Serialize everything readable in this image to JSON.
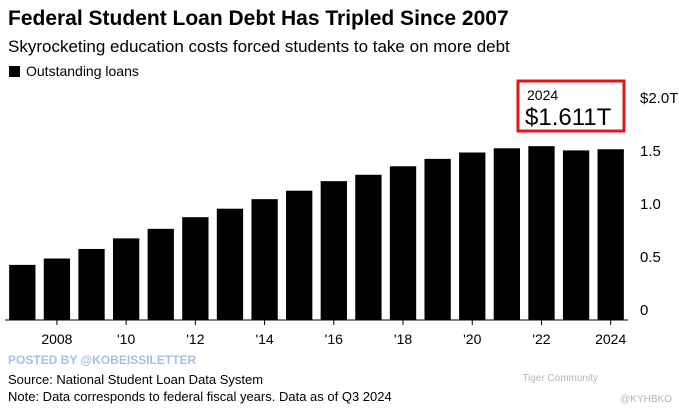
{
  "chart_data": {
    "type": "bar",
    "title": "Federal Student Loan Debt Has Tripled Since 2007",
    "subtitle": "Skyrocketing education costs forced students to take on more debt",
    "categories": [
      null,
      "2008",
      null,
      "'10",
      null,
      "'12",
      null,
      "'14",
      null,
      "'16",
      null,
      "'18",
      null,
      "'20",
      null,
      "'22",
      null,
      "2024"
    ],
    "series": [
      {
        "name": "Outstanding loans",
        "color": "#000000",
        "values": [
          0.52,
          0.58,
          0.67,
          0.77,
          0.86,
          0.97,
          1.05,
          1.14,
          1.22,
          1.31,
          1.37,
          1.45,
          1.52,
          1.58,
          1.62,
          1.64,
          1.6,
          1.611
        ],
        "value_labels": [
          null,
          null,
          null,
          null,
          null,
          null,
          null,
          null,
          null,
          null,
          null,
          null,
          null,
          null,
          null,
          null,
          null,
          "$1.611T"
        ]
      }
    ],
    "ylim": [
      0,
      2
    ],
    "yticks": [
      0,
      0.5,
      {
        "value": 1,
        "label": "1.0"
      },
      1.5,
      {
        "value": 2,
        "label": "$2.0T"
      }
    ],
    "y_axis_side": "right",
    "grid": false,
    "legend": "top-left",
    "watermark": "POSTED BY @KOBEISSILETTER",
    "source": "Source: National Student Loan Data System",
    "note": "Note: Data corresponds to federal fiscal years. Data as of Q3 2024",
    "credits": [
      "Tiger Community",
      "@KYHBKO"
    ]
  }
}
